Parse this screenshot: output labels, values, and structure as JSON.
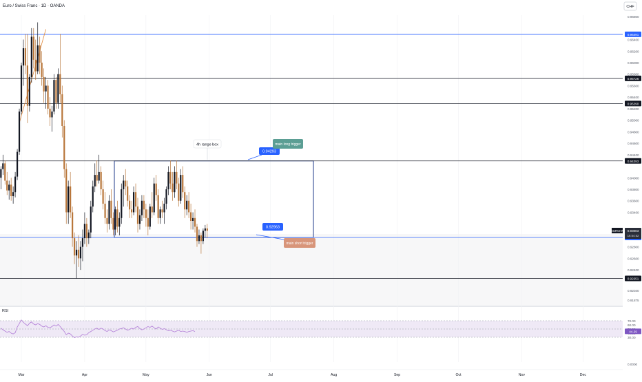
{
  "header": {
    "title": "Euro / Swiss Franc · 1D · OANDA",
    "currency_button": "CHF"
  },
  "colors": {
    "up": "#131722",
    "down": "#b8763a",
    "level_line": "#1f3d8a",
    "box_border": "#1e3a8a",
    "tag_blue": "#2962ff",
    "tag_dark": "#131722",
    "tag_teal": "#5b9e94",
    "tag_salmon": "#d8957a",
    "rsi_line": "#b07ad6",
    "rsi_band": "#efe9f6",
    "trend_orange": "#e0873a"
  },
  "chart_data": {
    "type": "candlestick",
    "symbol": "EURCHF",
    "timeframe": "1D",
    "ylim": [
      0.91875,
      0.96825
    ],
    "price_ticks": [
      "0.96800",
      "0.96400",
      "0.96200",
      "0.96000",
      "0.95800",
      "0.95600",
      "0.95400",
      "0.95200",
      "0.95000",
      "0.94800",
      "0.94600",
      "0.94400",
      "0.94000",
      "0.93800",
      "0.93600",
      "0.93400",
      "0.93000",
      "0.92800",
      "0.92600",
      "0.92400",
      "0.92040",
      "0.91875"
    ],
    "price_tick_values": [
      0.968,
      0.964,
      0.962,
      0.96,
      0.958,
      0.956,
      0.954,
      0.952,
      0.95,
      0.948,
      0.946,
      0.944,
      0.94,
      0.938,
      0.936,
      0.934,
      0.93,
      0.928,
      0.926,
      0.924,
      0.9204,
      0.91875
    ],
    "x_labels": [
      {
        "label": "Mar",
        "day": 0
      },
      {
        "label": "Apr",
        "day": 31
      },
      {
        "label": "May",
        "day": 61
      },
      {
        "label": "Jun",
        "day": 92
      },
      {
        "label": "Jul",
        "day": 122
      },
      {
        "label": "Aug",
        "day": 153
      },
      {
        "label": "Sep",
        "day": 184
      },
      {
        "label": "Oct",
        "day": 214
      },
      {
        "label": "Nov",
        "day": 245
      },
      {
        "label": "Dec",
        "day": 275
      }
    ],
    "levels": [
      {
        "price": 0.96491,
        "label": "0.96491",
        "style": "blue"
      },
      {
        "price": 0.95726,
        "label": "0.95726",
        "style": "dark"
      },
      {
        "price": 0.9529,
        "label": "0.95290",
        "style": "dark"
      },
      {
        "price": 0.94293,
        "label": "0.94293",
        "style": "dark"
      },
      {
        "price": 0.92963,
        "label": "0.92963",
        "style": "blue"
      },
      {
        "price": 0.92251,
        "label": "0.92251",
        "style": "dark"
      }
    ],
    "current_price": {
      "symbol": "EURCHF",
      "price": "0.93083",
      "countdown": "16:54:52"
    },
    "range_box": {
      "label": "4h range box",
      "top": 0.94293,
      "bottom": 0.92963,
      "day_start": -1,
      "day_end": 94
    },
    "annotations": [
      {
        "kind": "price_tag",
        "text": "0.94293",
        "price": 0.94293
      },
      {
        "kind": "note",
        "text": "main long trigger"
      },
      {
        "kind": "price_tag",
        "text": "0.92963",
        "price": 0.92963
      },
      {
        "kind": "note",
        "text": "main short trigger"
      }
    ],
    "candles": [
      [
        -10,
        0.94,
        0.942,
        0.938,
        0.9415
      ],
      [
        -9,
        0.9415,
        0.944,
        0.9405,
        0.9425
      ],
      [
        -8,
        0.9425,
        0.943,
        0.9388,
        0.9395
      ],
      [
        -7,
        0.9395,
        0.941,
        0.937,
        0.9378
      ],
      [
        -6,
        0.9378,
        0.9395,
        0.9362,
        0.9388
      ],
      [
        -5,
        0.9388,
        0.94,
        0.936,
        0.9368
      ],
      [
        -4,
        0.9368,
        0.9385,
        0.9355,
        0.9375
      ],
      [
        -3,
        0.9375,
        0.941,
        0.9366,
        0.9402
      ],
      [
        -2,
        0.9402,
        0.945,
        0.9396,
        0.9445
      ],
      [
        -1,
        0.9445,
        0.952,
        0.944,
        0.9515
      ],
      [
        0,
        0.9515,
        0.96,
        0.951,
        0.9595
      ],
      [
        1,
        0.9595,
        0.964,
        0.956,
        0.9625
      ],
      [
        2,
        0.9625,
        0.965,
        0.958,
        0.9595
      ],
      [
        3,
        0.9595,
        0.965,
        0.9495,
        0.9525
      ],
      [
        4,
        0.9525,
        0.958,
        0.9515,
        0.9575
      ],
      [
        5,
        0.9575,
        0.966,
        0.9565,
        0.9645
      ],
      [
        6,
        0.9645,
        0.966,
        0.959,
        0.9605
      ],
      [
        7,
        0.9605,
        0.964,
        0.957,
        0.9585
      ],
      [
        8,
        0.9585,
        0.967,
        0.958,
        0.963
      ],
      [
        9,
        0.963,
        0.9645,
        0.958,
        0.96
      ],
      [
        10,
        0.96,
        0.962,
        0.956,
        0.9575
      ],
      [
        11,
        0.9575,
        0.959,
        0.953,
        0.955
      ],
      [
        12,
        0.955,
        0.9575,
        0.952,
        0.956
      ],
      [
        13,
        0.956,
        0.957,
        0.951,
        0.952
      ],
      [
        14,
        0.952,
        0.954,
        0.949,
        0.9505
      ],
      [
        15,
        0.9505,
        0.9525,
        0.948,
        0.9515
      ],
      [
        16,
        0.9515,
        0.958,
        0.951,
        0.957
      ],
      [
        17,
        0.957,
        0.9575,
        0.952,
        0.953
      ],
      [
        18,
        0.953,
        0.959,
        0.952,
        0.958
      ],
      [
        19,
        0.958,
        0.965,
        0.953,
        0.9545
      ],
      [
        20,
        0.9545,
        0.956,
        0.947,
        0.949
      ],
      [
        21,
        0.949,
        0.95,
        0.94,
        0.9415
      ],
      [
        22,
        0.9415,
        0.9425,
        0.932,
        0.934
      ],
      [
        23,
        0.934,
        0.9395,
        0.932,
        0.9385
      ],
      [
        24,
        0.9385,
        0.941,
        0.933,
        0.934
      ],
      [
        25,
        0.934,
        0.935,
        0.928,
        0.9295
      ],
      [
        26,
        0.9295,
        0.9305,
        0.925,
        0.9265
      ],
      [
        27,
        0.9265,
        0.929,
        0.9225,
        0.9275
      ],
      [
        28,
        0.9275,
        0.93,
        0.9245,
        0.926
      ],
      [
        29,
        0.926,
        0.929,
        0.924,
        0.928
      ],
      [
        30,
        0.928,
        0.931,
        0.9255,
        0.9295
      ],
      [
        31,
        0.9295,
        0.934,
        0.9285,
        0.932
      ],
      [
        32,
        0.932,
        0.933,
        0.928,
        0.9295
      ],
      [
        33,
        0.9295,
        0.931,
        0.9285,
        0.9305
      ],
      [
        34,
        0.9305,
        0.936,
        0.9295,
        0.935
      ],
      [
        35,
        0.935,
        0.9395,
        0.934,
        0.9385
      ],
      [
        36,
        0.9385,
        0.9425,
        0.9375,
        0.9405
      ],
      [
        37,
        0.9405,
        0.943,
        0.9385,
        0.9395
      ],
      [
        38,
        0.9395,
        0.944,
        0.939,
        0.941
      ],
      [
        39,
        0.941,
        0.942,
        0.937,
        0.938
      ],
      [
        40,
        0.938,
        0.9395,
        0.9345,
        0.9355
      ],
      [
        41,
        0.9355,
        0.9375,
        0.932,
        0.933
      ],
      [
        42,
        0.933,
        0.9345,
        0.9305,
        0.932
      ],
      [
        43,
        0.932,
        0.937,
        0.931,
        0.936
      ],
      [
        44,
        0.936,
        0.938,
        0.932,
        0.933
      ],
      [
        45,
        0.933,
        0.934,
        0.93,
        0.931
      ],
      [
        46,
        0.931,
        0.935,
        0.93,
        0.9345
      ],
      [
        47,
        0.9345,
        0.936,
        0.9305,
        0.9315
      ],
      [
        48,
        0.9315,
        0.934,
        0.93,
        0.933
      ],
      [
        49,
        0.933,
        0.939,
        0.932,
        0.938
      ],
      [
        50,
        0.938,
        0.9405,
        0.935,
        0.9395
      ],
      [
        51,
        0.9395,
        0.9415,
        0.937,
        0.9385
      ],
      [
        52,
        0.9385,
        0.9395,
        0.935,
        0.936
      ],
      [
        53,
        0.936,
        0.937,
        0.933,
        0.9345
      ],
      [
        54,
        0.9345,
        0.936,
        0.933,
        0.934
      ],
      [
        55,
        0.934,
        0.9385,
        0.9335,
        0.9375
      ],
      [
        56,
        0.9375,
        0.939,
        0.934,
        0.935
      ],
      [
        57,
        0.935,
        0.9365,
        0.9305,
        0.932
      ],
      [
        58,
        0.932,
        0.9345,
        0.931,
        0.9335
      ],
      [
        59,
        0.9335,
        0.937,
        0.9325,
        0.936
      ],
      [
        60,
        0.936,
        0.937,
        0.933,
        0.9345
      ],
      [
        61,
        0.9345,
        0.9355,
        0.9315,
        0.933
      ],
      [
        62,
        0.933,
        0.9345,
        0.93,
        0.9315
      ],
      [
        63,
        0.9315,
        0.9355,
        0.931,
        0.935
      ],
      [
        64,
        0.935,
        0.9375,
        0.933,
        0.934
      ],
      [
        65,
        0.934,
        0.94,
        0.9335,
        0.939
      ],
      [
        66,
        0.939,
        0.9405,
        0.936,
        0.937
      ],
      [
        67,
        0.937,
        0.938,
        0.932,
        0.933
      ],
      [
        68,
        0.933,
        0.935,
        0.932,
        0.9345
      ],
      [
        69,
        0.9345,
        0.936,
        0.933,
        0.934
      ],
      [
        70,
        0.934,
        0.9365,
        0.932,
        0.9355
      ],
      [
        71,
        0.9355,
        0.9385,
        0.9345,
        0.938
      ],
      [
        72,
        0.938,
        0.942,
        0.937,
        0.941
      ],
      [
        73,
        0.941,
        0.943,
        0.938,
        0.939
      ],
      [
        74,
        0.939,
        0.941,
        0.936,
        0.9375
      ],
      [
        75,
        0.9375,
        0.942,
        0.9365,
        0.941
      ],
      [
        76,
        0.941,
        0.943,
        0.938,
        0.939
      ],
      [
        77,
        0.939,
        0.94,
        0.935,
        0.936
      ],
      [
        78,
        0.936,
        0.9415,
        0.9355,
        0.9405
      ],
      [
        79,
        0.9405,
        0.942,
        0.9365,
        0.9375
      ],
      [
        80,
        0.9375,
        0.9385,
        0.933,
        0.9345
      ],
      [
        81,
        0.9345,
        0.937,
        0.9335,
        0.936
      ],
      [
        82,
        0.936,
        0.9375,
        0.933,
        0.934
      ],
      [
        83,
        0.934,
        0.9355,
        0.931,
        0.9325
      ],
      [
        84,
        0.9325,
        0.934,
        0.931,
        0.933
      ],
      [
        85,
        0.933,
        0.9345,
        0.9305,
        0.9315
      ],
      [
        86,
        0.9315,
        0.932,
        0.928,
        0.929
      ],
      [
        87,
        0.929,
        0.931,
        0.9285,
        0.93
      ],
      [
        88,
        0.93,
        0.9305,
        0.9268,
        0.929
      ],
      [
        89,
        0.929,
        0.9312,
        0.9285,
        0.9308
      ],
      [
        90,
        0.9308,
        0.9318,
        0.9296,
        0.9312
      ],
      [
        91,
        0.9312,
        0.932,
        0.9295,
        0.9308
      ]
    ]
  },
  "rsi": {
    "label": "RSI",
    "upper": 70,
    "mid": 50,
    "lower": 30,
    "scale_ticks": [
      "70.00",
      "60.00",
      "50.00",
      "40.00",
      "30.00",
      "0.0000"
    ],
    "scale_values": [
      70,
      60,
      50,
      40,
      30,
      0
    ],
    "value_label": "44.29",
    "values": [
      52,
      48,
      45,
      42,
      44,
      40,
      38,
      41,
      55,
      63,
      72,
      66,
      62,
      58,
      64,
      67,
      62,
      60,
      63,
      61,
      57,
      55,
      58,
      54,
      53,
      56,
      60,
      57,
      61,
      56,
      50,
      44,
      36,
      40,
      38,
      33,
      29,
      31,
      30,
      33,
      37,
      35,
      36,
      41,
      44,
      47,
      50,
      52,
      49,
      52,
      50,
      46,
      44,
      48,
      46,
      43,
      45,
      47,
      50,
      51,
      53,
      50,
      47,
      49,
      52,
      50,
      54,
      56,
      51,
      48,
      50,
      53,
      56,
      54,
      57,
      53,
      50,
      55,
      52,
      49,
      51,
      48,
      46,
      47,
      45,
      43,
      45,
      47,
      44,
      45,
      44,
      42,
      44,
      45,
      46,
      44
    ]
  }
}
